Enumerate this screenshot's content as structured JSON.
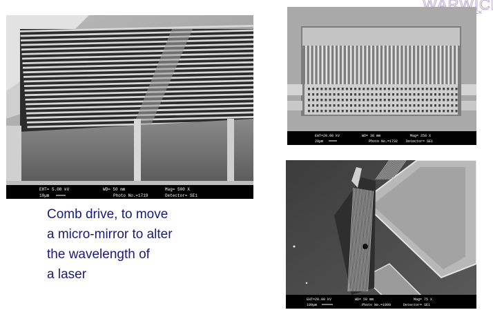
{
  "logo": {
    "main": "WARWICK",
    "sub": "RWICK"
  },
  "images": [
    {
      "name": "comb-drive-closeup",
      "bar": {
        "eht": "EHT= 5.00 kV",
        "scale": "10µm",
        "wd": "WD= 50 mm",
        "mag": "Mag= 500 X",
        "photo": "Photo No.=1719",
        "detector": "Detector= SE1"
      }
    },
    {
      "name": "comb-drive-topview",
      "bar": {
        "eht": "EHT=20.00 kV",
        "scale": "20µm",
        "wd": "WD= 38 mm",
        "mag": "Mag= 250 X",
        "photo": "Photo No.=1732",
        "detector": "Detector= SE1"
      }
    },
    {
      "name": "micro-mirror-angled",
      "bar": {
        "eht": "EHT=20.00 kV",
        "scale": "100µm",
        "wd": "WD= 59 mm",
        "mag": "Mag= 75 X",
        "photo": "Photo No.=1809",
        "detector": "Detector= SE1"
      }
    }
  ],
  "caption": [
    "Comb drive, to move",
    "a micro-mirror to alter",
    "the wavelength of",
    "a laser"
  ]
}
